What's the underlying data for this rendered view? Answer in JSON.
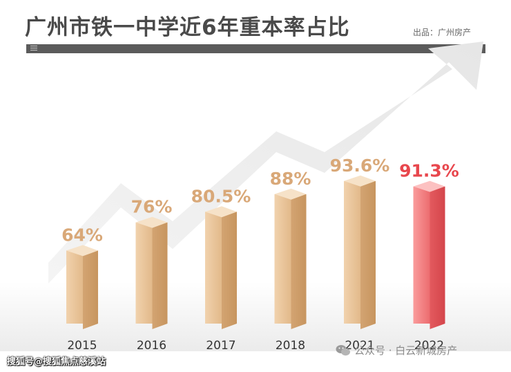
{
  "header": {
    "title": "广州市铁一中学近6年重本率占比",
    "source": "出品：广州房产"
  },
  "watermarks": {
    "left": "搜狐号@搜狐焦点慈溪站",
    "right": "公众号 · 白云新城房产"
  },
  "colors": {
    "bar_normal": "#e6bf92",
    "bar_highlight": "#f08080",
    "label_normal": "#d9a878",
    "label_highlight": "#e8474d"
  },
  "chart_data": {
    "type": "bar",
    "title": "广州市铁一中学近6年重本率占比",
    "categories": [
      "2015",
      "2016",
      "2017",
      "2018",
      "2021",
      "2022"
    ],
    "values": [
      64,
      76,
      80.5,
      88,
      93.6,
      91.3
    ],
    "data_labels": [
      "64%",
      "76%",
      "80.5%",
      "88%",
      "93.6%",
      "91.3%"
    ],
    "highlight_index": 5,
    "xlabel": "",
    "ylabel": "",
    "grid": false,
    "legend": "none"
  }
}
